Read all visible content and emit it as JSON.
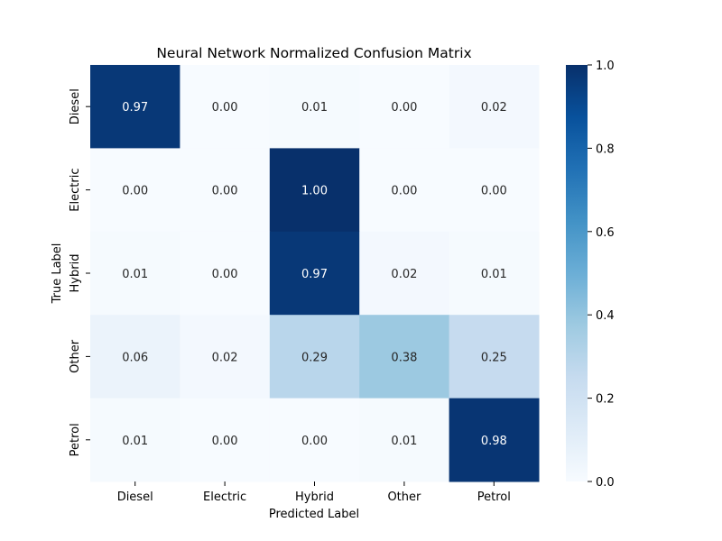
{
  "chart_data": {
    "type": "heatmap",
    "title": "Neural Network Normalized Confusion Matrix",
    "xlabel": "Predicted Label",
    "ylabel": "True Label",
    "x_categories": [
      "Diesel",
      "Electric",
      "Hybrid",
      "Other",
      "Petrol"
    ],
    "y_categories": [
      "Diesel",
      "Electric",
      "Hybrid",
      "Other",
      "Petrol"
    ],
    "values": [
      [
        0.97,
        0.0,
        0.01,
        0.0,
        0.02
      ],
      [
        0.0,
        0.0,
        1.0,
        0.0,
        0.0
      ],
      [
        0.01,
        0.0,
        0.97,
        0.02,
        0.01
      ],
      [
        0.06,
        0.02,
        0.29,
        0.38,
        0.25
      ],
      [
        0.01,
        0.0,
        0.0,
        0.01,
        0.98
      ]
    ],
    "value_format": "0.00",
    "colormap": "Blues",
    "colorbar": {
      "range": [
        0.0,
        1.0
      ],
      "ticks": [
        0.0,
        0.2,
        0.4,
        0.6,
        0.8,
        1.0
      ],
      "tick_labels": [
        "0.0",
        "0.2",
        "0.4",
        "0.6",
        "0.8",
        "1.0"
      ]
    },
    "grid": false,
    "legend": "colorbar-right"
  }
}
